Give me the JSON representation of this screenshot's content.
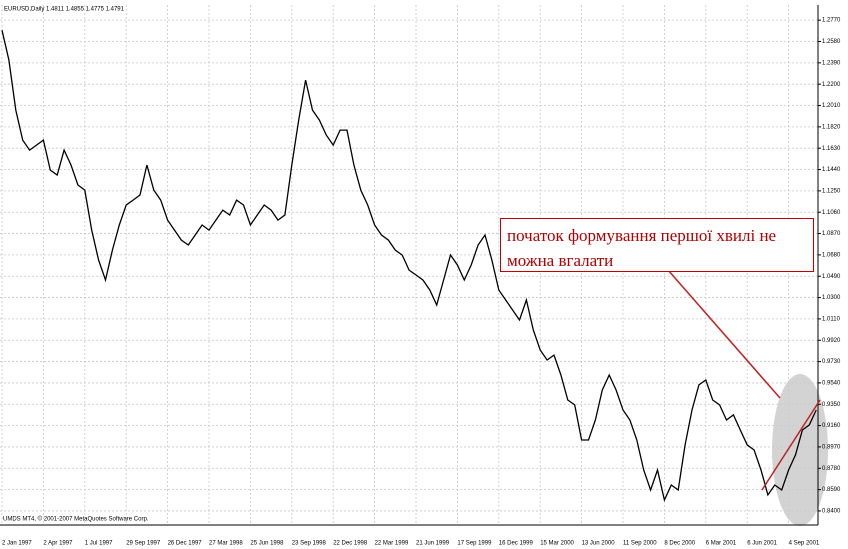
{
  "chart_data": {
    "type": "line",
    "title": "EURUSD,Daily 1.4811 1.4855 1.4775 1.4791",
    "footer": "UMDS MT4, © 2001-2007 MetaQuotes Software Corp.",
    "annotation": "початок формування першої хвилі не можна вгалати",
    "grid": true,
    "color": "#000000",
    "categories": [
      "2 Jan 1997",
      null,
      null,
      null,
      null,
      null,
      "2 Apr 1997",
      null,
      null,
      null,
      null,
      null,
      "1 Jul 1997",
      null,
      null,
      null,
      null,
      null,
      "29 Sep 1997",
      null,
      null,
      null,
      null,
      null,
      "26 Dec 1997",
      null,
      null,
      null,
      null,
      null,
      "27 Mar 1998",
      null,
      null,
      null,
      null,
      null,
      "25 Jun 1998",
      null,
      null,
      null,
      null,
      null,
      "23 Sep 1998",
      null,
      null,
      null,
      null,
      null,
      "22 Dec 1998",
      null,
      null,
      null,
      null,
      null,
      "22 Mar 1999",
      null,
      null,
      null,
      null,
      null,
      "21 Jun 1999",
      null,
      null,
      null,
      null,
      null,
      "17 Sep 1999",
      null,
      null,
      null,
      null,
      null,
      "16 Dec 1999",
      null,
      null,
      null,
      null,
      null,
      "15 Mar 2000",
      null,
      null,
      null,
      null,
      null,
      "13 Jun 2000",
      null,
      null,
      null,
      null,
      null,
      "11 Sep 2000",
      null,
      null,
      null,
      null,
      null,
      "8 Dec 2000",
      null,
      null,
      null,
      null,
      null,
      "6 Mar 2001",
      null,
      null,
      null,
      null,
      null,
      "6 Jun 2001",
      null,
      null,
      null,
      null,
      null,
      "4 Sep 2001",
      null,
      null,
      null,
      null
    ],
    "values": [
      1.2681,
      1.2414,
      1.1969,
      1.1702,
      1.1613,
      1.1658,
      1.1702,
      1.1435,
      1.1391,
      1.1613,
      1.148,
      1.1302,
      1.1257,
      1.0901,
      1.0634,
      1.0456,
      1.0723,
      1.0946,
      1.1124,
      1.1168,
      1.1213,
      1.148,
      1.1257,
      1.1168,
      1.099,
      1.0901,
      1.0812,
      1.0768,
      1.0857,
      1.0946,
      1.0901,
      1.099,
      1.1079,
      1.1035,
      1.1168,
      1.1124,
      1.0946,
      1.1035,
      1.1124,
      1.1079,
      1.099,
      1.1035,
      1.148,
      1.188,
      1.2236,
      1.1969,
      1.188,
      1.1747,
      1.1658,
      1.1791,
      1.1791,
      1.148,
      1.1257,
      1.1124,
      1.0946,
      1.0857,
      1.0812,
      1.0723,
      1.0679,
      1.0545,
      1.0501,
      1.0456,
      1.0367,
      1.0234,
      1.0456,
      1.0679,
      1.059,
      1.0456,
      1.059,
      1.0768,
      1.0857,
      1.0634,
      1.0367,
      1.0278,
      1.0189,
      1.01,
      1.0278,
      1.0011,
      0.9833,
      0.9744,
      0.9788,
      0.9611,
      0.9388,
      0.9344,
      0.9032,
      0.9032,
      0.921,
      0.9477,
      0.9611,
      0.9477,
      0.9299,
      0.921,
      0.9032,
      0.8765,
      0.8587,
      0.8765,
      0.8498,
      0.8631,
      0.8587,
      0.8988,
      0.9299,
      0.9522,
      0.9566,
      0.9388,
      0.9344,
      0.921,
      0.9255,
      0.9121,
      0.8988,
      0.8943,
      0.8765,
      0.8543,
      0.8631,
      0.8587,
      0.8765,
      0.8899,
      0.9121,
      0.9166,
      0.9299
    ],
    "ylim": [
      0.8275,
      1.2905
    ],
    "yticks": [
      {
        "value": 1.277,
        "label": "1.2770"
      },
      {
        "value": 1.258,
        "label": "1.2580"
      },
      {
        "value": 1.239,
        "label": "1.2390"
      },
      {
        "value": 1.22,
        "label": "1.2200"
      },
      {
        "value": 1.201,
        "label": "1.2010"
      },
      {
        "value": 1.182,
        "label": "1.1820"
      },
      {
        "value": 1.163,
        "label": "1.1630"
      },
      {
        "value": 1.144,
        "label": "1.1440"
      },
      {
        "value": 1.125,
        "label": "1.1250"
      },
      {
        "value": 1.106,
        "label": "1.1060"
      },
      {
        "value": 1.087,
        "label": "1.0870"
      },
      {
        "value": 1.068,
        "label": "1.0680"
      },
      {
        "value": 1.049,
        "label": "1.0490"
      },
      {
        "value": 1.03,
        "label": "1.0300"
      },
      {
        "value": 1.011,
        "label": "1.0110"
      },
      {
        "value": 0.992,
        "label": "0.9920"
      },
      {
        "value": 0.973,
        "label": "0.9730"
      },
      {
        "value": 0.954,
        "label": "0.9540"
      },
      {
        "value": 0.935,
        "label": "0.9350"
      },
      {
        "value": 0.916,
        "label": "0.9160"
      },
      {
        "value": 0.897,
        "label": "0.8970"
      },
      {
        "value": 0.878,
        "label": "0.8780"
      },
      {
        "value": 0.859,
        "label": "0.8590"
      },
      {
        "value": 0.84,
        "label": "0.8400"
      }
    ]
  }
}
